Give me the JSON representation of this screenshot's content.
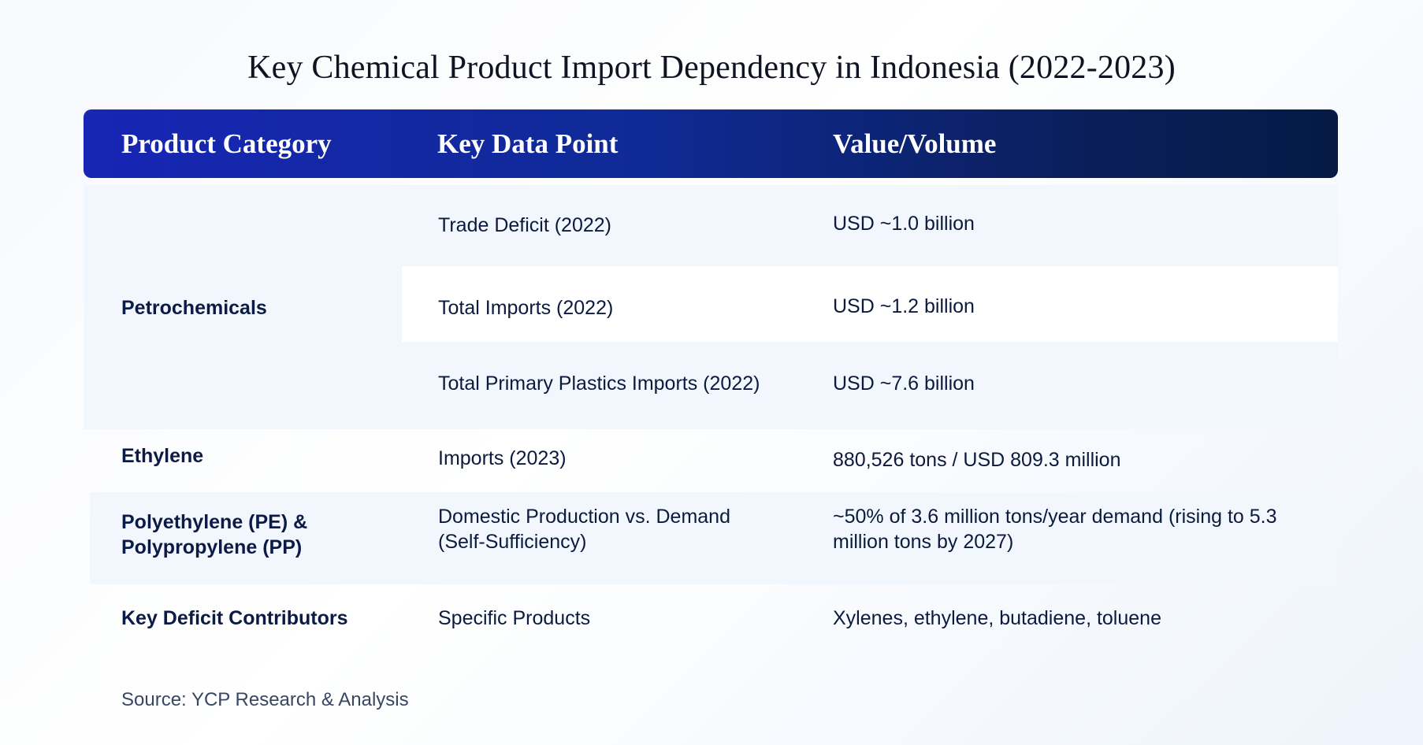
{
  "title": "Key Chemical Product Import Dependency in Indonesia (2022-2023)",
  "header": {
    "col1": "Product Category",
    "col2": "Key Data Point",
    "col3": "Value/Volume"
  },
  "rows": {
    "petrochemicals": {
      "category": "Petrochemicals",
      "r1": {
        "point": "Trade Deficit (2022)",
        "value": "USD ~1.0 billion"
      },
      "r2": {
        "point": "Total Imports (2022)",
        "value": "USD ~1.2 billion"
      },
      "r3": {
        "point": "Total Primary Plastics Imports (2022)",
        "value": "USD ~7.6 billion"
      }
    },
    "ethylene": {
      "category": "Ethylene",
      "point": "Imports (2023)",
      "value": "880,526 tons / USD 809.3 million"
    },
    "pe_pp": {
      "category_line1": "Polyethylene (PE) &",
      "category_line2": "Polypropylene (PP)",
      "point_line1": "Domestic Production vs. Demand",
      "point_line2": "(Self-Sufficiency)",
      "value_line1": "~50% of 3.6 million tons/year demand (rising to 5.3",
      "value_line2": "million tons by 2027)"
    },
    "deficit": {
      "category": "Key Deficit Contributors",
      "point": "Specific Products",
      "value": "Xylenes, ethylene, butadiene, toluene"
    }
  },
  "source": "Source: YCP Research & Analysis"
}
